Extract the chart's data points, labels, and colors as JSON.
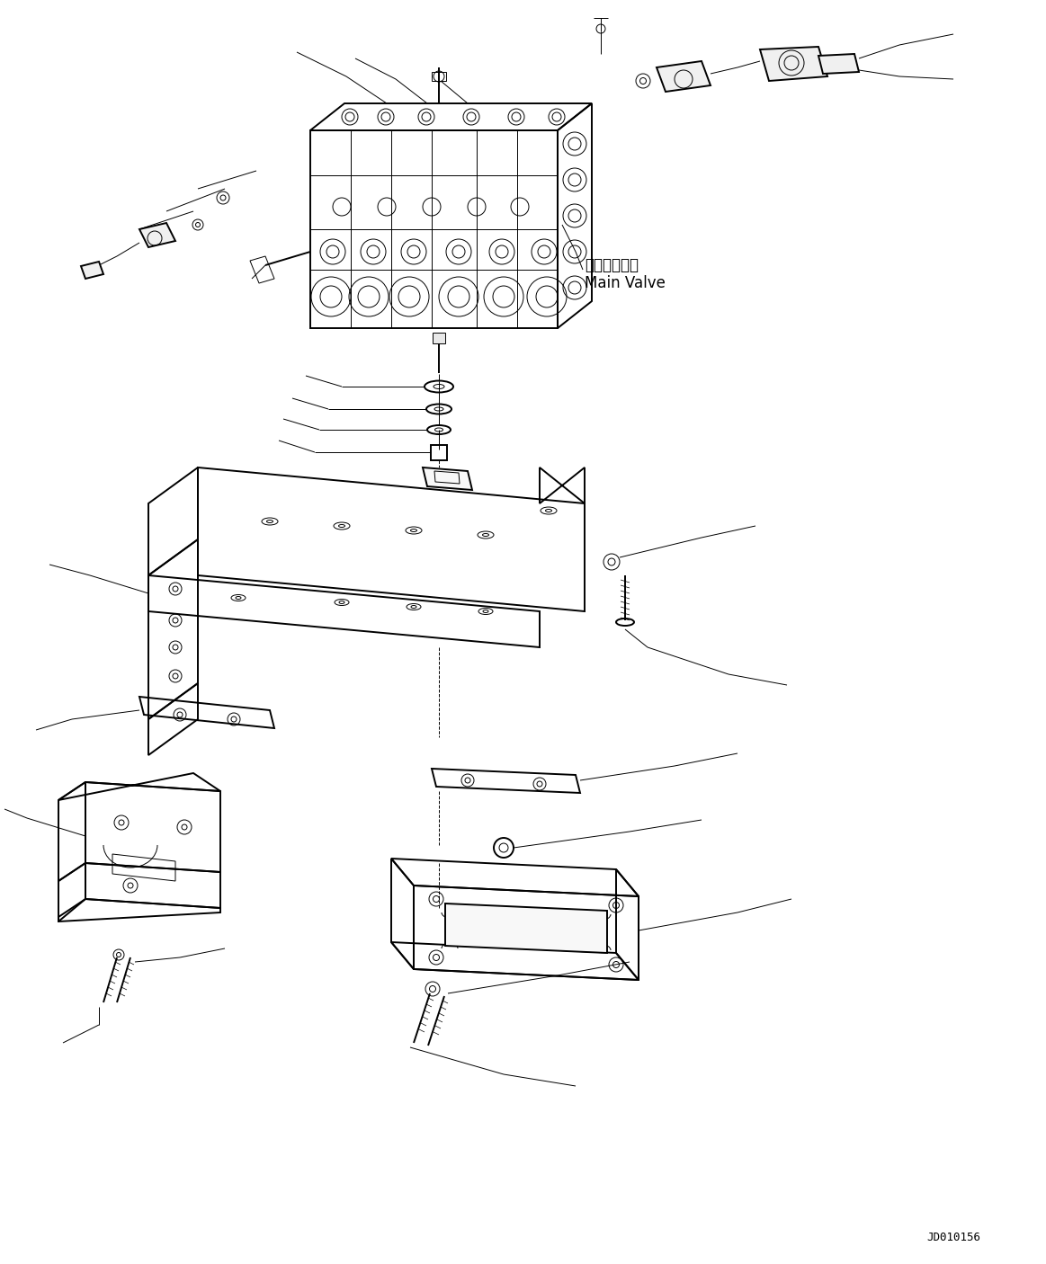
{
  "bg_color": "#ffffff",
  "line_color": "#000000",
  "title_code": "JD010156",
  "main_valve_label_ja": "メインバルブ",
  "main_valve_label_en": "Main Valve",
  "figsize": [
    11.63,
    14.06
  ],
  "dpi": 100
}
